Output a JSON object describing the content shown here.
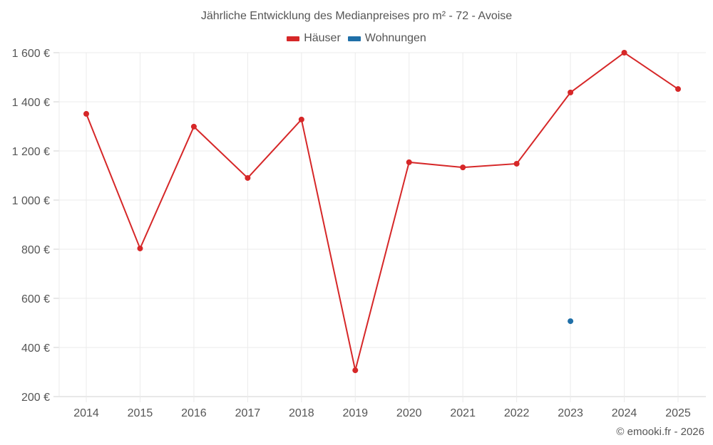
{
  "title": "Jährliche Entwicklung des Medianpreises pro m² - 72 - Avoise",
  "legend": [
    {
      "label": "Häuser",
      "color": "#d62728"
    },
    {
      "label": "Wohnungen",
      "color": "#1f6fa8"
    }
  ],
  "credit": "© emooki.fr - 2026",
  "chart_data": {
    "type": "line",
    "title": "Jährliche Entwicklung des Medianpreises pro m² - 72 - Avoise",
    "xlabel": "",
    "ylabel": "",
    "categories": [
      "2014",
      "2015",
      "2016",
      "2017",
      "2018",
      "2019",
      "2020",
      "2021",
      "2022",
      "2023",
      "2024",
      "2025"
    ],
    "series": [
      {
        "name": "Häuser",
        "color": "#d62728",
        "values": [
          1351,
          803,
          1299,
          1090,
          1328,
          307,
          1154,
          1133,
          1148,
          1438,
          1600,
          1452
        ]
      },
      {
        "name": "Wohnungen",
        "color": "#1f6fa8",
        "values": [
          null,
          null,
          null,
          null,
          null,
          null,
          null,
          null,
          null,
          507,
          null,
          null
        ]
      }
    ],
    "ylim": [
      200,
      1600
    ],
    "yticks": [
      200,
      400,
      600,
      800,
      1000,
      1200,
      1400,
      1600
    ],
    "ytick_labels": [
      "200 €",
      "400 €",
      "600 €",
      "800 €",
      "1 000 €",
      "1 200 €",
      "1 400 €",
      "1 600 €"
    ],
    "grid": true,
    "legend_position": "top"
  }
}
